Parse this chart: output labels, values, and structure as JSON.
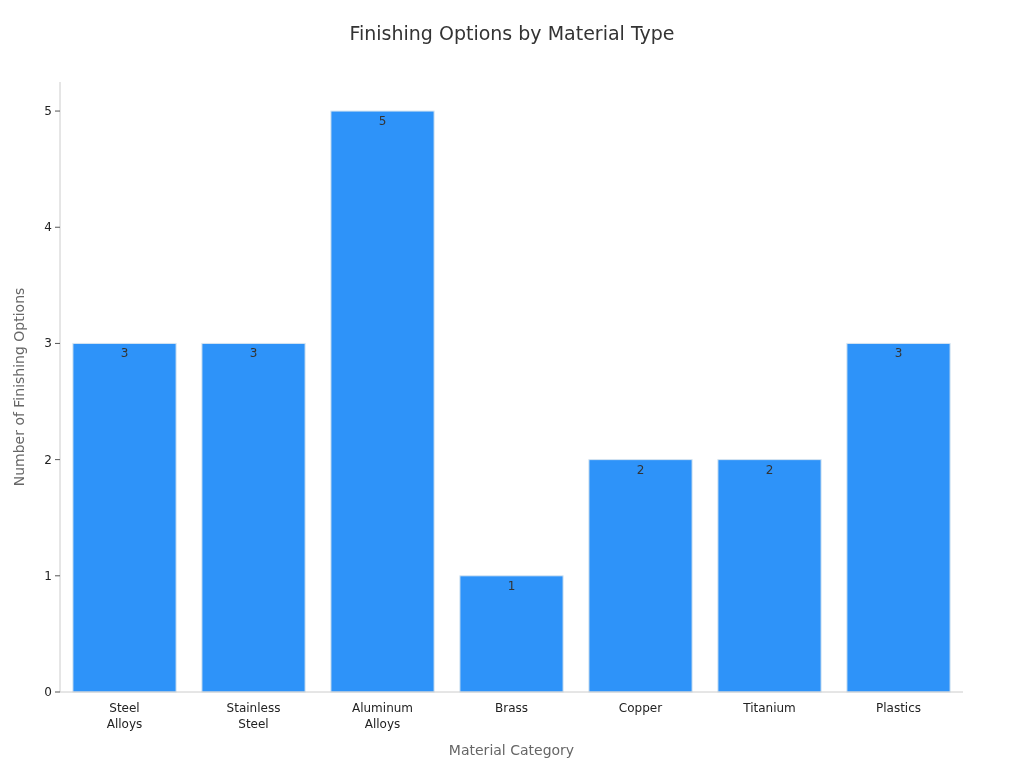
{
  "chart_data": {
    "type": "bar",
    "title": "Finishing Options by Material Type",
    "xlabel": "Material Category",
    "ylabel": "Number of Finishing Options",
    "categories": [
      "Steel Alloys",
      "Stainless Steel",
      "Aluminum Alloys",
      "Brass",
      "Copper",
      "Titanium",
      "Plastics"
    ],
    "values": [
      3,
      3,
      5,
      1,
      2,
      2,
      3
    ],
    "color": "#2e93f9",
    "ylim": [
      0,
      5.25
    ],
    "yticks": [
      0,
      1,
      2,
      3,
      4,
      5
    ],
    "grid": false,
    "data_labels": true
  }
}
